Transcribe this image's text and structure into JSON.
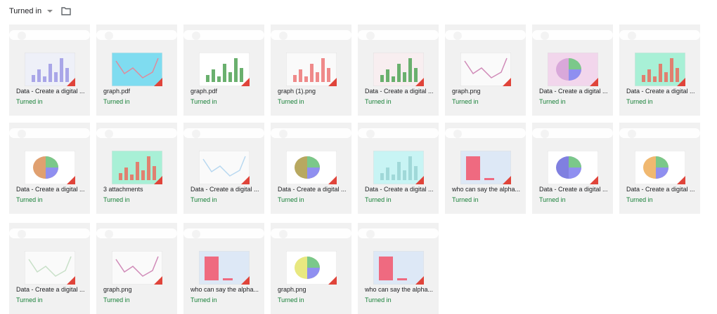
{
  "header": {
    "title": "Turned in"
  },
  "cards": [
    {
      "file": "Data - Create a digital ...",
      "status": "Turned in"
    },
    {
      "file": "graph.pdf",
      "status": "Turned in"
    },
    {
      "file": "graph.pdf",
      "status": "Turned in"
    },
    {
      "file": "graph (1).png",
      "status": "Turned in"
    },
    {
      "file": "Data - Create a digital ...",
      "status": "Turned in"
    },
    {
      "file": "graph.png",
      "status": "Turned in"
    },
    {
      "file": "Data - Create a digital ...",
      "status": "Turned in"
    },
    {
      "file": "Data - Create a digital ...",
      "status": "Turned in"
    },
    {
      "file": "Data - Create a digital ...",
      "status": "Turned in"
    },
    {
      "file": "3 attachments",
      "status": "Turned in"
    },
    {
      "file": "Data - Create a digital ...",
      "status": "Turned in"
    },
    {
      "file": "Data - Create a digital ...",
      "status": "Turned in"
    },
    {
      "file": "Data - Create a digital ...",
      "status": "Turned in"
    },
    {
      "file": "who can say the alpha...",
      "status": "Turned in"
    },
    {
      "file": "Data - Create a digital ...",
      "status": "Turned in"
    },
    {
      "file": "Data - Create a digital ...",
      "status": "Turned in"
    },
    {
      "file": "Data - Create a digital ...",
      "status": "Turned in"
    },
    {
      "file": "graph.png",
      "status": "Turned in"
    },
    {
      "file": "who can say the alpha...",
      "status": "Turned in"
    },
    {
      "file": "graph.png",
      "status": "Turned in"
    },
    {
      "file": "who can say the alpha...",
      "status": "Turned in"
    }
  ]
}
